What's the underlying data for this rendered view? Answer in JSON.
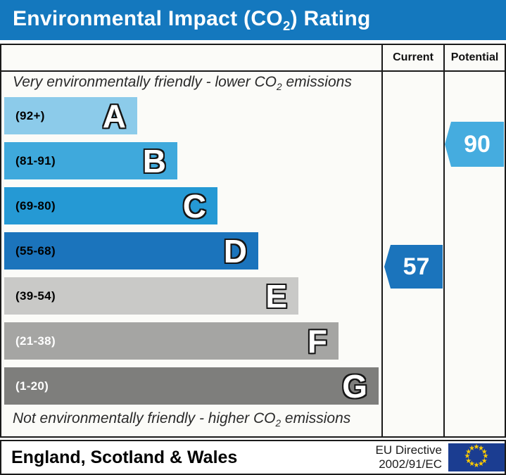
{
  "title": {
    "pre": "Environmental Impact (CO",
    "sub": "2",
    "post": ") Rating"
  },
  "columns": {
    "current": "Current",
    "potential": "Potential"
  },
  "captions": {
    "top": {
      "pre": "Very environmentally friendly - lower CO",
      "sub": "2",
      "post": " emissions"
    },
    "bottom": {
      "pre": "Not environmentally friendly - higher CO",
      "sub": "2",
      "post": " emissions"
    }
  },
  "chart_data": {
    "type": "bar",
    "title": "Environmental Impact (CO2) Rating",
    "bands": [
      {
        "letter": "A",
        "range": "(92+)",
        "min": 92,
        "max": 100,
        "color": "#8ccbea",
        "range_color": "#000000"
      },
      {
        "letter": "B",
        "range": "(81-91)",
        "min": 81,
        "max": 91,
        "color": "#3fa9dc",
        "range_color": "#000000"
      },
      {
        "letter": "C",
        "range": "(69-80)",
        "min": 69,
        "max": 80,
        "color": "#2599d4",
        "range_color": "#000000"
      },
      {
        "letter": "D",
        "range": "(55-68)",
        "min": 55,
        "max": 68,
        "color": "#1b74bc",
        "range_color": "#000000"
      },
      {
        "letter": "E",
        "range": "(39-54)",
        "min": 39,
        "max": 54,
        "color": "#c9c9c7",
        "range_color": "#000000"
      },
      {
        "letter": "F",
        "range": "(21-38)",
        "min": 21,
        "max": 38,
        "color": "#a5a5a3",
        "range_color": "#ffffff"
      },
      {
        "letter": "G",
        "range": "(1-20)",
        "min": 1,
        "max": 20,
        "color": "#7e7e7c",
        "range_color": "#ffffff"
      }
    ],
    "current": {
      "value": 57,
      "band": "D",
      "color": "#1b74bc"
    },
    "potential": {
      "value": 90,
      "band": "B",
      "color": "#45acdf"
    }
  },
  "colors": {
    "title_bar": "#1478be",
    "border": "#1a1a1a",
    "chart_background": "#fbfbf8"
  },
  "footer": {
    "region": "England, Scotland & Wales",
    "directive_line1": "EU Directive",
    "directive_line2": "2002/91/EC",
    "flag": {
      "background": "#1b3d91",
      "star_color": "#ffcc00",
      "star_glyph": "★"
    }
  }
}
